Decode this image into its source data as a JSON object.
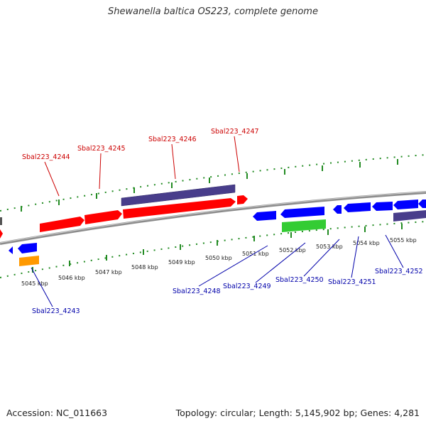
{
  "header": {
    "title": "Shewanella baltica OS223, complete genome"
  },
  "footer": {
    "accession": "Accession: NC_011663",
    "topology": "Topology: circular; Length: 5,145,902 bp; Genes: 4,281"
  },
  "colors": {
    "forward_cds": "#ff0000",
    "reverse_cds": "#0000ff",
    "gene_track": "#483d8b",
    "misc_green": "#33cc33",
    "misc_orange": "#ff9900",
    "backbone": "#8c8c8c",
    "tick": "#228b22",
    "label_forward": "#cc0000",
    "label_reverse": "#0000aa"
  },
  "kbp_labels": [
    "5045 kbp",
    "5046 kbp",
    "5047 kbp",
    "5048 kbp",
    "5049 kbp",
    "5050 kbp",
    "5051 kbp",
    "5052 kbp",
    "5053 kbp",
    "5054 kbp",
    "5055 kbp"
  ],
  "labels_top": [
    "Sbal223_4244",
    "Sbal223_4245",
    "Sbal223_4246",
    "Sbal223_4247"
  ],
  "labels_bottom": [
    "Sbal223_4243",
    "Sbal223_4248",
    "Sbal223_4249",
    "Sbal223_4250",
    "Sbal223_4251",
    "Sbal223_4252"
  ]
}
